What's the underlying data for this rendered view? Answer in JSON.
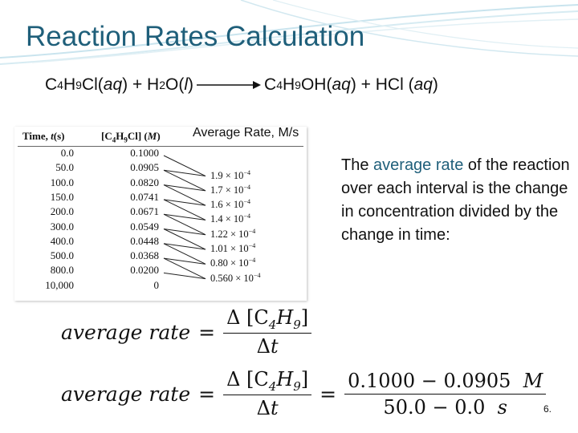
{
  "slide": {
    "title": "Reaction Rates Calculation",
    "page_number": "6."
  },
  "equation": {
    "reactant_1": "C",
    "reactant_1_sub_1": "4",
    "reactant_1_mid": "H",
    "reactant_1_sub_2": "9",
    "reactant_1_end": "Cl(",
    "reactant_1_phase": "aq",
    "reactant_1_close": ") + H",
    "reactant_2_sub": "2",
    "reactant_2_mid": "O(",
    "reactant_2_phase": "l",
    "reactant_2_close": ")",
    "product_1": "C",
    "product_1_sub_1": "4",
    "product_1_mid": "H",
    "product_1_sub_2": "9",
    "product_1_end": "OH(",
    "product_1_phase": "aq",
    "product_1_close": ") + HCl (",
    "product_2_phase": "aq",
    "product_2_close": ")"
  },
  "rate_heading": "Average Rate, M/s",
  "table": {
    "time_header": "Time, ",
    "time_header_var": "t",
    "time_header_unit": "(s)",
    "conc_header_open": "[C",
    "conc_header_sub_1": "4",
    "conc_header_mid": "H",
    "conc_header_sub_2": "9",
    "conc_header_close": "Cl] (",
    "conc_header_unit": "M",
    "conc_header_end": ")",
    "rows": [
      {
        "time": "0.0",
        "conc": "0.1000"
      },
      {
        "time": "50.0",
        "conc": "0.0905"
      },
      {
        "time": "100.0",
        "conc": "0.0820"
      },
      {
        "time": "150.0",
        "conc": "0.0741"
      },
      {
        "time": "200.0",
        "conc": "0.0671"
      },
      {
        "time": "300.0",
        "conc": "0.0549"
      },
      {
        "time": "400.0",
        "conc": "0.0448"
      },
      {
        "time": "500.0",
        "conc": "0.0368"
      },
      {
        "time": "800.0",
        "conc": "0.0200"
      },
      {
        "time": "10,000",
        "conc": "0"
      }
    ],
    "average_rates": [
      {
        "mantissa": "1.9 × 10",
        "exponent": "−4"
      },
      {
        "mantissa": "1.7 × 10",
        "exponent": "−4"
      },
      {
        "mantissa": "1.6 × 10",
        "exponent": "−4"
      },
      {
        "mantissa": "1.4 × 10",
        "exponent": "−4"
      },
      {
        "mantissa": "1.22 × 10",
        "exponent": "−4"
      },
      {
        "mantissa": "1.01 × 10",
        "exponent": "−4"
      },
      {
        "mantissa": "0.80 × 10",
        "exponent": "−4"
      },
      {
        "mantissa": "0.560 × 10",
        "exponent": "−4"
      }
    ]
  },
  "description": {
    "before": "The ",
    "highlight": "average rate",
    "after": " of the reaction over each interval is the change in concentration divided by the change in time:"
  },
  "formula_1": {
    "lhs": "average rate",
    "equals": "=",
    "num_prefix": "Δ [C",
    "num_sub_1": "4",
    "num_mid": "H",
    "num_sub_2": "9",
    "num_suffix": "]",
    "den_prefix": "Δ",
    "den_var": "t"
  },
  "formula_2": {
    "lhs": "average rate",
    "equals": "=",
    "num_prefix": "Δ [C",
    "num_sub_1": "4",
    "num_mid": "H",
    "num_sub_2": "9",
    "num_suffix": "]",
    "den_prefix": "Δ",
    "den_var": "t",
    "equals_2": "=",
    "num_2_value": "0.1000 − 0.0905",
    "num_2_unit": "M",
    "den_2_value": "50.0 − 0.0",
    "den_2_unit": "s"
  },
  "colors": {
    "title": "#1f5f7a",
    "accent": "#1f5f7a",
    "swoosh": "#bcdde8"
  }
}
